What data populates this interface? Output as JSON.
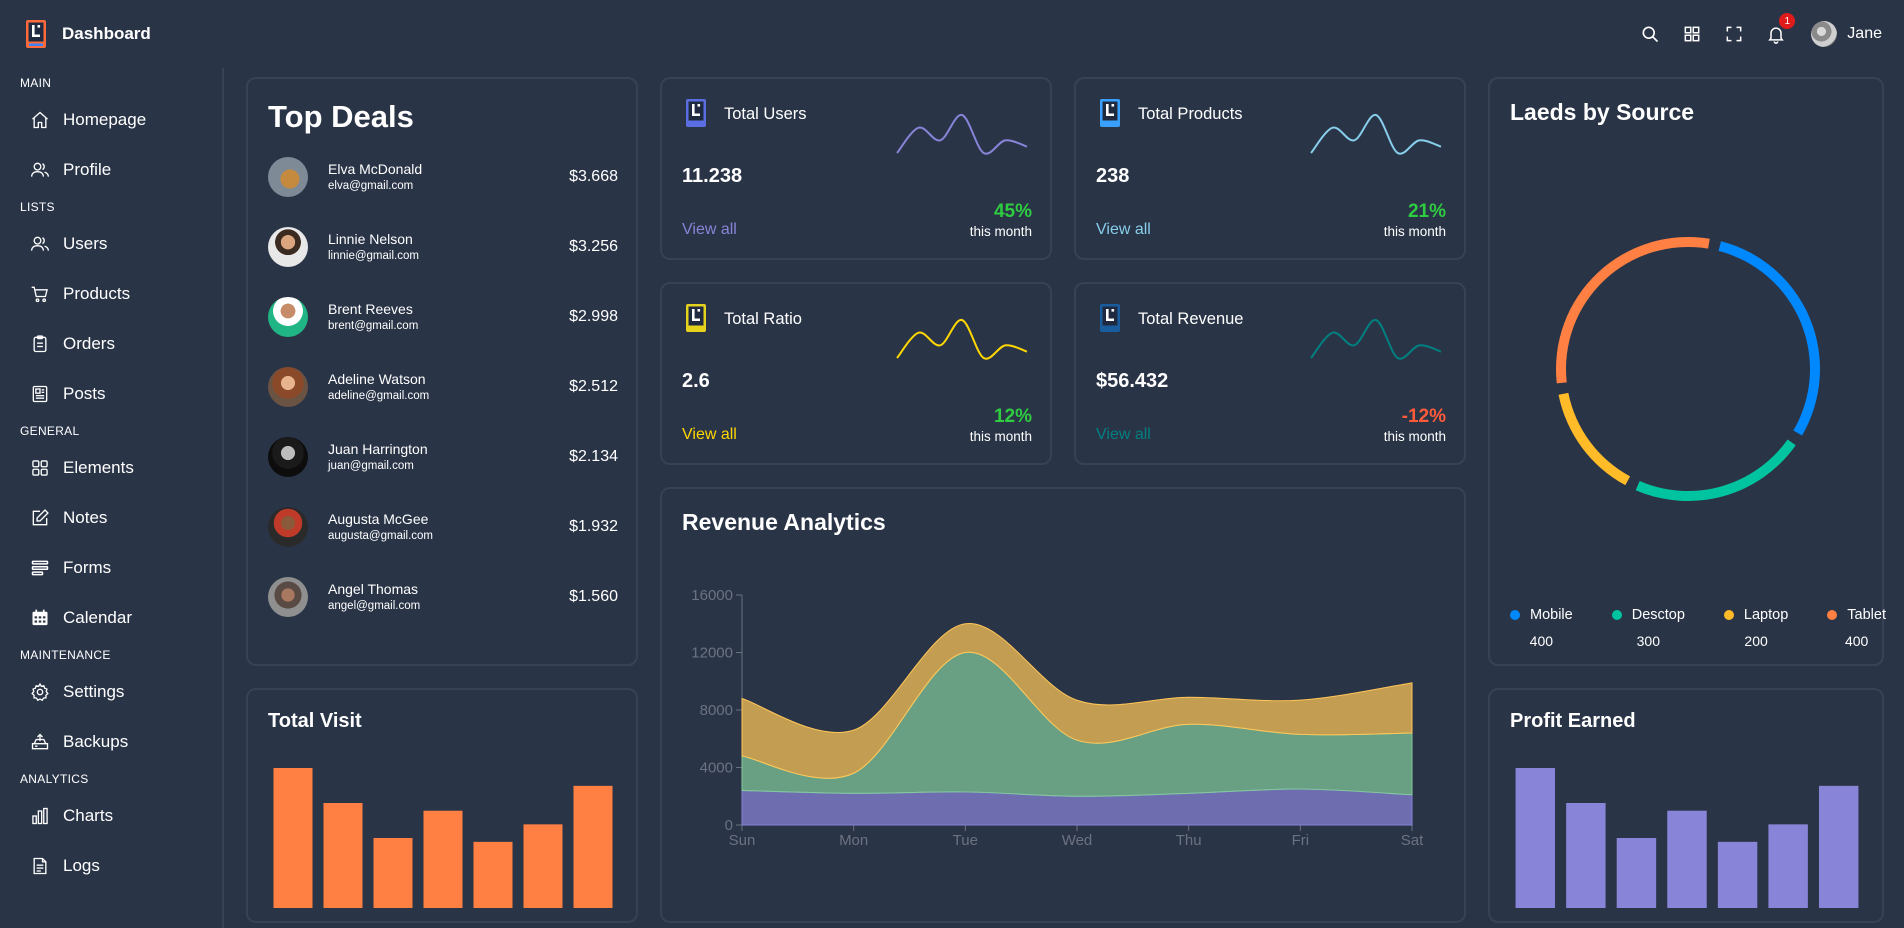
{
  "app": {
    "title": "Dashboard",
    "user_name": "Jane",
    "notifications_count": "1"
  },
  "colors": {
    "background": "#2a3447",
    "border": "#384256",
    "orange": "#ff8042",
    "purple": "#8884d8",
    "green": "#00c49f",
    "yellow": "#ffbb28",
    "blue": "#0088fe",
    "positive": "#2ecc40",
    "negative": "#ff5b3a"
  },
  "sidebar": {
    "sections": [
      {
        "title": "MAIN",
        "items": [
          {
            "label": "Homepage",
            "icon": "home-icon"
          },
          {
            "label": "Profile",
            "icon": "profile-icon"
          }
        ]
      },
      {
        "title": "LISTS",
        "items": [
          {
            "label": "Users",
            "icon": "users-icon"
          },
          {
            "label": "Products",
            "icon": "cart-icon"
          },
          {
            "label": "Orders",
            "icon": "clipboard-icon"
          },
          {
            "label": "Posts",
            "icon": "posts-icon"
          }
        ]
      },
      {
        "title": "GENERAL",
        "items": [
          {
            "label": "Elements",
            "icon": "grid-icon"
          },
          {
            "label": "Notes",
            "icon": "note-icon"
          },
          {
            "label": "Forms",
            "icon": "forms-icon"
          },
          {
            "label": "Calendar",
            "icon": "calendar-icon"
          }
        ]
      },
      {
        "title": "MAINTENANCE",
        "items": [
          {
            "label": "Settings",
            "icon": "gear-icon"
          },
          {
            "label": "Backups",
            "icon": "backup-icon"
          }
        ]
      },
      {
        "title": "ANALYTICS",
        "items": [
          {
            "label": "Charts",
            "icon": "chart-icon"
          },
          {
            "label": "Logs",
            "icon": "logs-icon"
          }
        ]
      }
    ]
  },
  "top_deals": {
    "title": "Top Deals",
    "items": [
      {
        "name": "Elva McDonald",
        "email": "elva@gmail.com",
        "amount": "$3.668"
      },
      {
        "name": "Linnie Nelson",
        "email": "linnie@gmail.com",
        "amount": "$3.256"
      },
      {
        "name": "Brent Reeves",
        "email": "brent@gmail.com",
        "amount": "$2.998"
      },
      {
        "name": "Adeline Watson",
        "email": "adeline@gmail.com",
        "amount": "$2.512"
      },
      {
        "name": "Juan Harrington",
        "email": "juan@gmail.com",
        "amount": "$2.134"
      },
      {
        "name": "Augusta McGee",
        "email": "augusta@gmail.com",
        "amount": "$1.932"
      },
      {
        "name": "Angel Thomas",
        "email": "angel@gmail.com",
        "amount": "$1.560"
      }
    ]
  },
  "stats": [
    {
      "title": "Total Users",
      "value": "11.238",
      "link": "View all",
      "percent": "45%",
      "period": "this month",
      "color": "#8884d8",
      "trend": "positive"
    },
    {
      "title": "Total Products",
      "value": "238",
      "link": "View all",
      "percent": "21%",
      "period": "this month",
      "color": "#87ceeb",
      "trend": "positive"
    },
    {
      "title": "Total Ratio",
      "value": "2.6",
      "link": "View all",
      "percent": "12%",
      "period": "this month",
      "color": "gold",
      "trend": "positive"
    },
    {
      "title": "Total Revenue",
      "value": "$56.432",
      "link": "View all",
      "percent": "-12%",
      "period": "this month",
      "color": "teal",
      "trend": "negative"
    }
  ],
  "leads": {
    "title": "Laeds by Source",
    "items": [
      {
        "name": "Mobile",
        "value": "400",
        "color": "#0088fe"
      },
      {
        "name": "Desctop",
        "value": "300",
        "color": "#00c49f"
      },
      {
        "name": "Laptop",
        "value": "200",
        "color": "#ffbb28"
      },
      {
        "name": "Tablet",
        "value": "400",
        "color": "#ff8042"
      }
    ]
  },
  "total_visit": {
    "title": "Total Visit"
  },
  "revenue": {
    "title": "Revenue Analytics"
  },
  "profit": {
    "title": "Profit Earned"
  },
  "chart_data": [
    {
      "type": "pie",
      "title": "Laeds by Source",
      "categories": [
        "Mobile",
        "Desctop",
        "Laptop",
        "Tablet"
      ],
      "values": [
        400,
        300,
        200,
        400
      ],
      "legend": "bottom"
    },
    {
      "type": "area",
      "title": "Revenue Analytics",
      "categories": [
        "Sun",
        "Mon",
        "Tue",
        "Wed",
        "Thu",
        "Fri",
        "Sat"
      ],
      "ylim": [
        0,
        16000
      ],
      "yticks": [
        "0",
        "4000",
        "8000",
        "12000",
        "16000"
      ],
      "stacked": true,
      "series": [
        {
          "color": "#8884d8",
          "values": [
            2400,
            2200,
            2300,
            2000,
            2200,
            2500,
            2100
          ]
        },
        {
          "color": "#82ca9d",
          "values": [
            2400,
            1400,
            9700,
            3900,
            4800,
            3800,
            4300
          ]
        },
        {
          "color": "#ffc658",
          "values": [
            4000,
            3000,
            2000,
            2780,
            1890,
            2390,
            3490
          ]
        }
      ]
    },
    {
      "type": "bar",
      "title": "Total Visit",
      "values": [
        4000,
        3000,
        2000,
        2780,
        1890,
        2390,
        3490
      ]
    },
    {
      "type": "bar",
      "title": "Profit Earned",
      "values": [
        4000,
        3000,
        2000,
        2780,
        1890,
        2390,
        3490
      ]
    },
    {
      "type": "line",
      "title": "Total Users",
      "values": [
        400,
        600,
        500,
        700,
        400,
        500,
        450
      ]
    },
    {
      "type": "line",
      "title": "Total Products",
      "values": [
        400,
        600,
        500,
        700,
        400,
        500,
        450
      ]
    },
    {
      "type": "line",
      "title": "Total Ratio",
      "values": [
        400,
        600,
        500,
        700,
        400,
        500,
        450
      ]
    },
    {
      "type": "line",
      "title": "Total Revenue",
      "values": [
        400,
        600,
        500,
        700,
        400,
        500,
        450
      ]
    }
  ]
}
